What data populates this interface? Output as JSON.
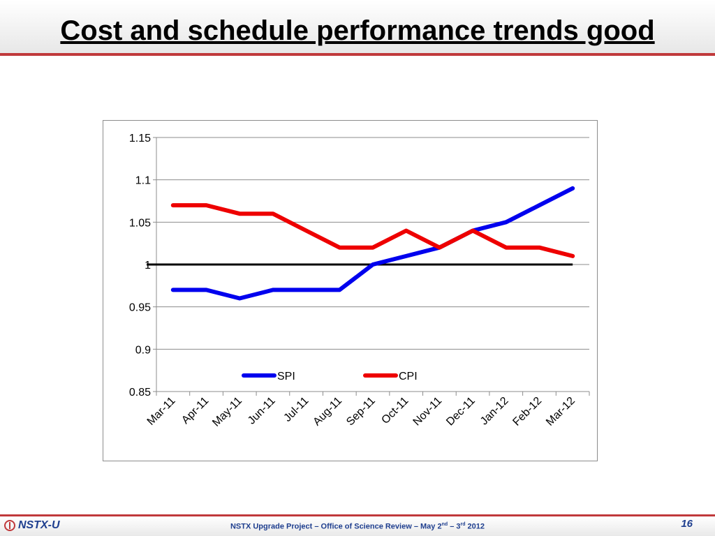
{
  "slide": {
    "title": "Cost and schedule performance trends good",
    "page_number": "16",
    "logo_text": "NSTX-U",
    "footer": {
      "pre": "NSTX Upgrade Project – Office of Science Review – May  2",
      "sup1": "nd",
      "mid": " – 3",
      "sup2": "rd",
      "post": "  2012"
    }
  },
  "chart_data": {
    "type": "line",
    "categories": [
      "Mar-11",
      "Apr-11",
      "May-11",
      "Jun-11",
      "Jul-11",
      "Aug-11",
      "Sep-11",
      "Oct-11",
      "Nov-11",
      "Dec-11",
      "Jan-12",
      "Feb-12",
      "Mar-12"
    ],
    "series": [
      {
        "name": "SPI",
        "color": "#0000ee",
        "values": [
          0.97,
          0.97,
          0.96,
          0.97,
          0.97,
          0.97,
          1.0,
          1.01,
          1.02,
          1.04,
          1.05,
          1.07,
          1.09
        ]
      },
      {
        "name": "CPI",
        "color": "#ee0000",
        "values": [
          1.07,
          1.07,
          1.06,
          1.06,
          1.04,
          1.02,
          1.02,
          1.04,
          1.02,
          1.04,
          1.02,
          1.02,
          1.01
        ]
      }
    ],
    "reference_line": {
      "value": 1.0,
      "color": "#000000"
    },
    "yticks": [
      "0.85",
      "0.9",
      "0.95",
      "1",
      "1.05",
      "1.1",
      "1.15"
    ],
    "ylim": [
      0.85,
      1.15
    ],
    "grid": true,
    "legend": "bottom-center, inside plot",
    "title": "",
    "xlabel": "",
    "ylabel": ""
  }
}
